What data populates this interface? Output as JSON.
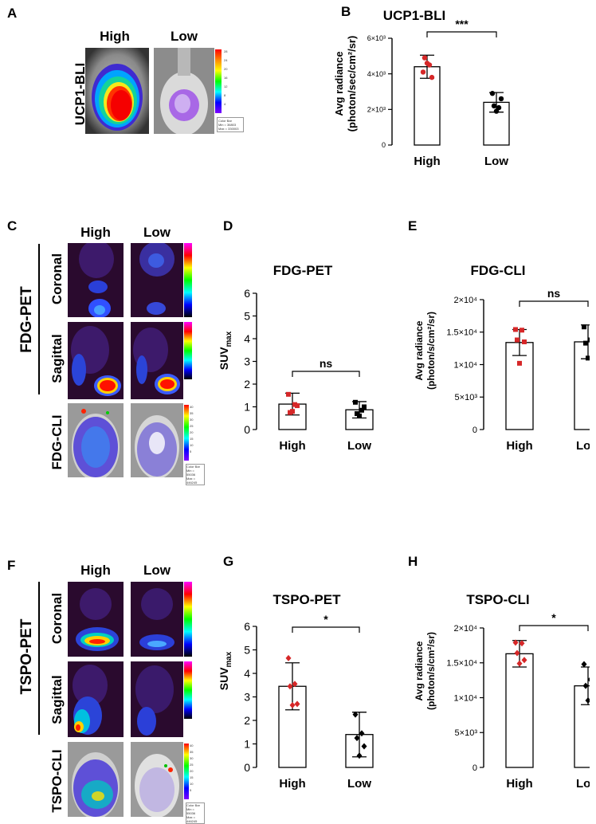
{
  "panels": {
    "A": {
      "letter": "A",
      "col_high": "High",
      "col_low": "Low",
      "row_label": "UCP1-BLI",
      "colorbar_ticks": [
        "28",
        "24",
        "20",
        "16",
        "12",
        "8",
        "4"
      ],
      "colorbar_unit": "p/s",
      "colorbar_box": [
        "Color Bar",
        "Min = 36803",
        "Max = 330003"
      ]
    },
    "C": {
      "letter": "C",
      "col_high": "High",
      "col_low": "Low",
      "group_label": "FDG-PET",
      "row1": "Coronal",
      "row2": "Sagittal",
      "row3": "FDG-CLI",
      "colorbar_ticks": [
        "40",
        "35",
        "30",
        "25",
        "20",
        "15",
        "10",
        "5"
      ],
      "colorbar_unit": "p/s",
      "colorbar_box": [
        "Color Bar",
        "Min = 55036",
        "Max = 446245"
      ]
    },
    "F": {
      "letter": "F",
      "col_high": "High",
      "col_low": "Low",
      "group_label": "TSPO-PET",
      "row1": "Coronal",
      "row2": "Sagittal",
      "row3": "TSPO-CLI",
      "colorbar_ticks": [
        "40",
        "35",
        "30",
        "25",
        "20",
        "15",
        "10",
        "5"
      ],
      "colorbar_unit": "p/s",
      "colorbar_box": [
        "Color Bar",
        "Min = 55036",
        "Max = 446245"
      ]
    }
  },
  "chart_data": [
    {
      "id": "B",
      "letter": "B",
      "type": "bar",
      "title": "UCP1-BLI",
      "categories": [
        "High",
        "Low"
      ],
      "values": [
        4400,
        2400
      ],
      "errors": [
        650,
        550
      ],
      "ylabel_line1": "Avg radiance",
      "ylabel_line2": "(photon/sec/cm²/sr)",
      "ylim": [
        0,
        6000
      ],
      "yticks": [
        {
          "v": 0,
          "label": "0"
        },
        {
          "v": 2000,
          "label": "2×10³"
        },
        {
          "v": 4000,
          "label": "4×10³"
        },
        {
          "v": 6000,
          "label": "6×10³"
        }
      ],
      "significance": "***",
      "points": [
        [
          4100,
          4500,
          4900,
          3800,
          4600
        ],
        [
          2900,
          2100,
          2200,
          2600,
          1900
        ]
      ],
      "point_colors": [
        "#d62728",
        "#000000"
      ],
      "point_shapes": [
        "circle",
        "circle"
      ]
    },
    {
      "id": "D",
      "letter": "D",
      "type": "bar",
      "title": "FDG-PET",
      "categories": [
        "High",
        "Low"
      ],
      "values": [
        1.12,
        0.87
      ],
      "errors": [
        0.48,
        0.36
      ],
      "ylabel_main": "SUV",
      "ylabel_sub": "max",
      "ylim": [
        0,
        6
      ],
      "yticks": [
        {
          "v": 0,
          "label": "0"
        },
        {
          "v": 1,
          "label": "1"
        },
        {
          "v": 2,
          "label": "2"
        },
        {
          "v": 3,
          "label": "3"
        },
        {
          "v": 4,
          "label": "4"
        },
        {
          "v": 5,
          "label": "5"
        },
        {
          "v": 6,
          "label": "6"
        }
      ],
      "significance": "ns",
      "points": [
        [
          1.55,
          1.1,
          0.75,
          1.05,
          0.8
        ],
        [
          1.2,
          0.85,
          0.7,
          1.0,
          0.6
        ]
      ],
      "point_colors": [
        "#d62728",
        "#000000"
      ],
      "point_shapes": [
        "square",
        "square"
      ]
    },
    {
      "id": "E",
      "letter": "E",
      "type": "bar",
      "title": "FDG-CLI",
      "categories": [
        "High",
        "Low"
      ],
      "values": [
        13400,
        13500
      ],
      "errors": [
        2000,
        2600
      ],
      "ylabel_line1": "Avg radiance",
      "ylabel_line2": "(photon/s/cm²/sr)",
      "ylim": [
        0,
        20000
      ],
      "yticks": [
        {
          "v": 0,
          "label": "0"
        },
        {
          "v": 5000,
          "label": "5×10³"
        },
        {
          "v": 10000,
          "label": "1×10⁴"
        },
        {
          "v": 15000,
          "label": "1.5×10⁴"
        },
        {
          "v": 20000,
          "label": "2×10⁴"
        }
      ],
      "significance": "ns",
      "points": [
        [
          15400,
          15300,
          13800,
          13500,
          10200
        ],
        [
          15800,
          13800,
          13300,
          12700,
          11000
        ]
      ],
      "point_colors": [
        "#d62728",
        "#000000"
      ],
      "point_shapes": [
        "square",
        "square"
      ]
    },
    {
      "id": "G",
      "letter": "G",
      "type": "bar",
      "title": "TSPO-PET",
      "categories": [
        "High",
        "Low"
      ],
      "values": [
        3.45,
        1.4
      ],
      "errors": [
        1.0,
        0.95
      ],
      "ylabel_main": "SUV",
      "ylabel_sub": "max",
      "ylim": [
        0,
        6
      ],
      "yticks": [
        {
          "v": 0,
          "label": "0"
        },
        {
          "v": 1,
          "label": "1"
        },
        {
          "v": 2,
          "label": "2"
        },
        {
          "v": 3,
          "label": "3"
        },
        {
          "v": 4,
          "label": "4"
        },
        {
          "v": 5,
          "label": "5"
        },
        {
          "v": 6,
          "label": "6"
        }
      ],
      "significance": "*",
      "points": [
        [
          4.65,
          3.55,
          3.45,
          2.7,
          2.65
        ],
        [
          2.25,
          1.45,
          1.25,
          0.9,
          0.5
        ]
      ],
      "point_colors": [
        "#d62728",
        "#000000"
      ],
      "point_shapes": [
        "diamond",
        "diamond"
      ]
    },
    {
      "id": "H",
      "letter": "H",
      "type": "bar",
      "title": "TSPO-CLI",
      "categories": [
        "High",
        "Low"
      ],
      "values": [
        16300,
        11700
      ],
      "errors": [
        1900,
        2700
      ],
      "ylabel_line1": "Avg radiance",
      "ylabel_line2": "(photon/s/cm²/sr)",
      "ylim": [
        0,
        20000
      ],
      "yticks": [
        {
          "v": 0,
          "label": "0"
        },
        {
          "v": 5000,
          "label": "5×10³"
        },
        {
          "v": 10000,
          "label": "1×10⁴"
        },
        {
          "v": 15000,
          "label": "1.5×10⁴"
        },
        {
          "v": 20000,
          "label": "2×10⁴"
        }
      ],
      "significance": "*",
      "points": [
        [
          17900,
          17800,
          16400,
          15400,
          14900
        ],
        [
          14800,
          12600,
          11700,
          10100,
          9600
        ]
      ],
      "point_colors": [
        "#d62728",
        "#000000"
      ],
      "point_shapes": [
        "diamond",
        "diamond"
      ]
    }
  ]
}
